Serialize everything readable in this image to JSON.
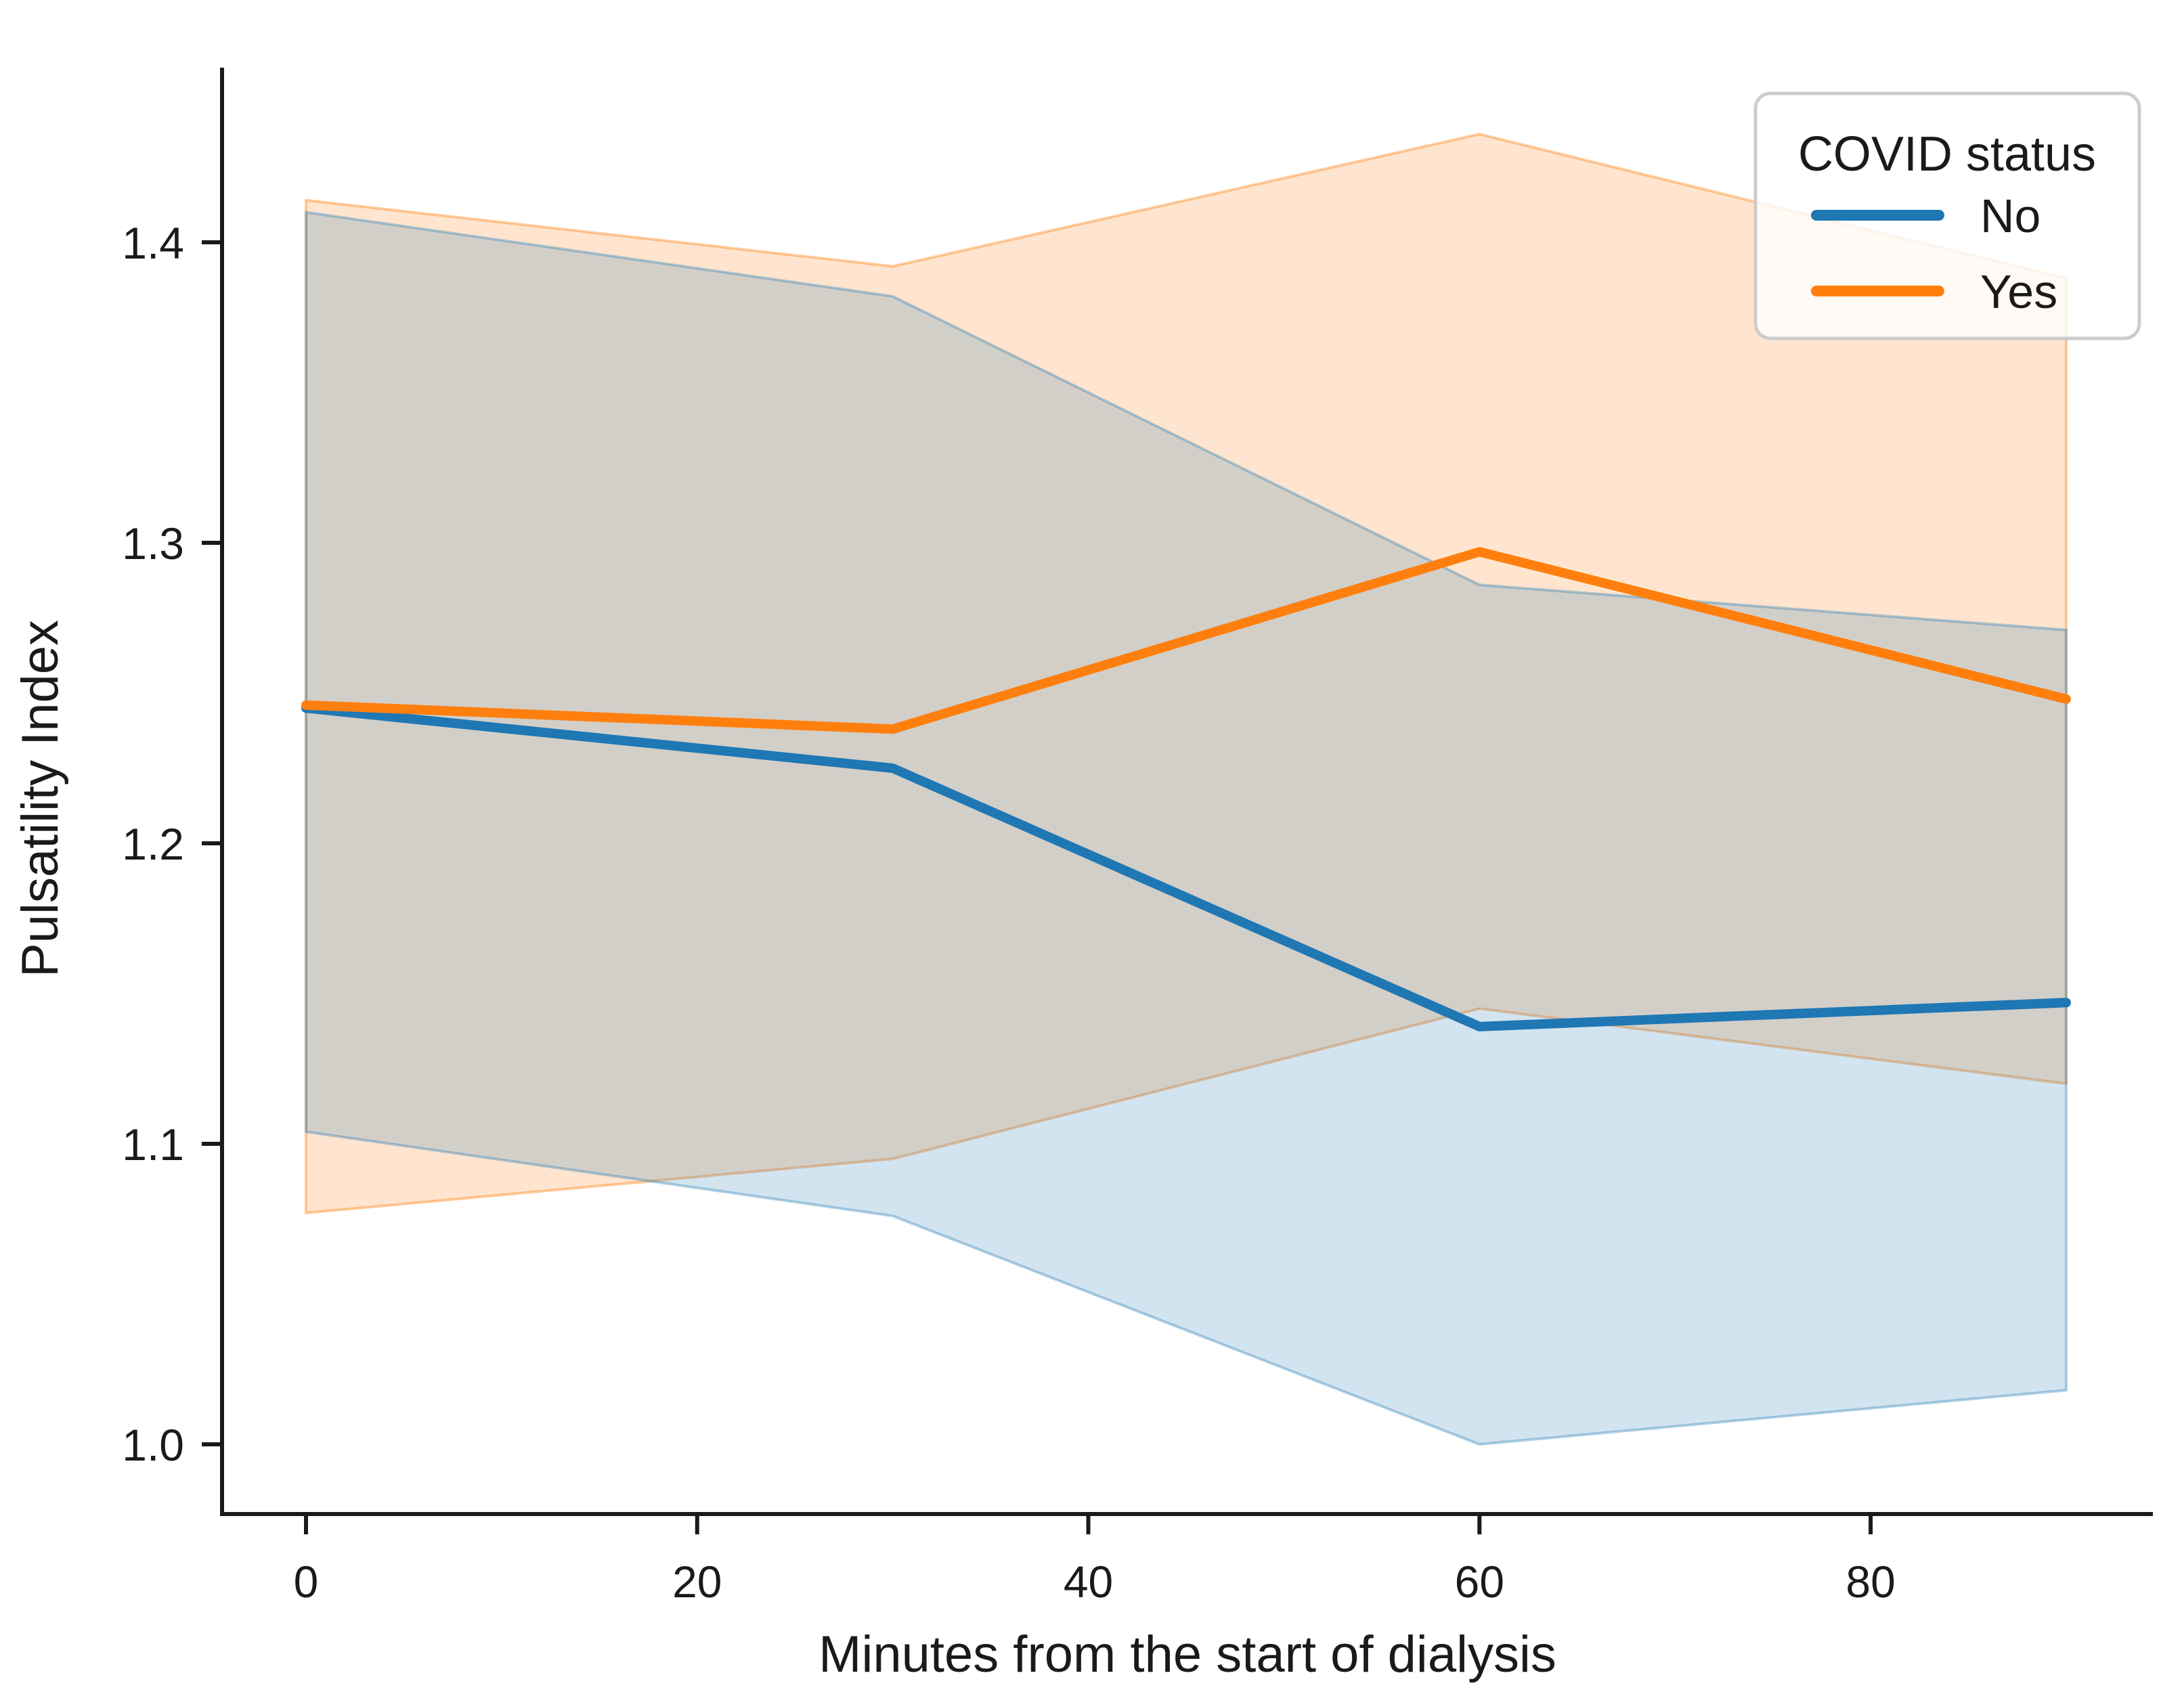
{
  "chart_data": {
    "type": "line",
    "title": "",
    "xlabel": "Minutes from the start of dialysis",
    "ylabel": "Pulsatility Index",
    "x": [
      0,
      30,
      60,
      90
    ],
    "series": [
      {
        "name": "No",
        "color": "#1f77b4",
        "band_fill": "rgba(31,119,180,0.2)",
        "band_edge": "rgba(31,119,180,0.35)",
        "values": [
          1.245,
          1.225,
          1.139,
          1.147
        ],
        "ci_lower": [
          1.104,
          1.076,
          1.0,
          1.018
        ],
        "ci_upper": [
          1.41,
          1.382,
          1.286,
          1.271
        ]
      },
      {
        "name": "Yes",
        "color": "#ff7f0e",
        "band_fill": "rgba(255,127,14,0.2)",
        "band_edge": "rgba(255,127,14,0.4)",
        "values": [
          1.246,
          1.238,
          1.297,
          1.248
        ],
        "ci_lower": [
          1.077,
          1.095,
          1.145,
          1.12
        ],
        "ci_upper": [
          1.414,
          1.392,
          1.436,
          1.388
        ]
      }
    ],
    "x_ticks": [
      0,
      20,
      40,
      60,
      80
    ],
    "y_ticks": [
      "1.0",
      "1.1",
      "1.2",
      "1.3",
      "1.4"
    ],
    "xlim": [
      -4.3,
      94.4
    ],
    "ylim": [
      0.977,
      1.458
    ],
    "grid": false,
    "legend": {
      "title": "COVID status",
      "position": "upper right",
      "items": [
        "No",
        "Yes"
      ]
    }
  }
}
